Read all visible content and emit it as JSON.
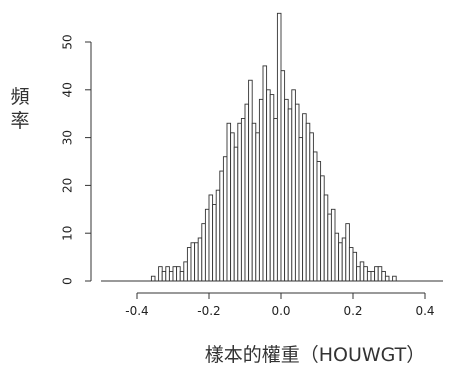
{
  "chart_data": {
    "type": "bar",
    "title": "",
    "xlabel": "樣本的權重（HOUWGT）",
    "ylabel": "頻率",
    "xlim": [
      -0.5,
      0.45
    ],
    "ylim": [
      0,
      56
    ],
    "x_ticks": [
      -0.4,
      -0.2,
      0.0,
      0.2,
      0.4
    ],
    "x_tick_labels": [
      "-0.4",
      "-0.2",
      "0.0",
      "0.2",
      "0.4"
    ],
    "y_ticks": [
      0,
      10,
      20,
      30,
      40,
      50
    ],
    "y_tick_labels": [
      "0",
      "10",
      "20",
      "30",
      "40",
      "50"
    ],
    "grid": false,
    "bar_fill": "#ffffff",
    "bar_stroke": "#333333",
    "bin_width": 0.01,
    "bin_start": -0.36,
    "values": [
      1,
      0,
      3,
      2,
      3,
      2,
      3,
      3,
      2,
      4,
      7,
      8,
      8,
      9,
      12,
      15,
      18,
      16,
      19,
      23,
      26,
      33,
      31,
      28,
      33,
      34,
      37,
      42,
      33,
      31,
      38,
      45,
      40,
      39,
      34,
      56,
      44,
      38,
      36,
      40,
      37,
      30,
      35,
      33,
      31,
      27,
      25,
      22,
      18,
      14,
      15,
      10,
      8,
      9,
      12,
      7,
      6,
      3,
      4,
      3,
      2,
      2,
      3,
      3,
      2,
      1,
      0,
      1
    ]
  }
}
